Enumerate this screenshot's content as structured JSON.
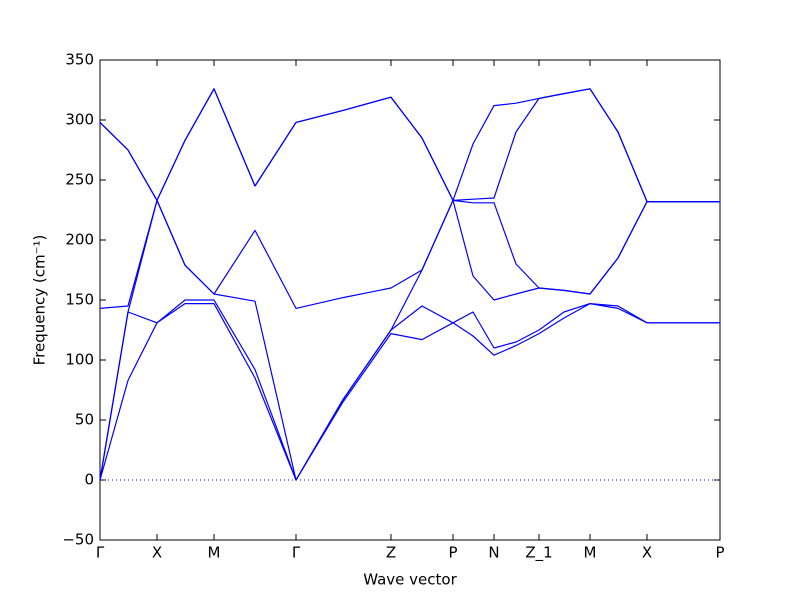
{
  "chart_data": {
    "type": "line",
    "xlabel": "Wave vector",
    "ylabel": "Frequency (cm⁻¹)",
    "x": [
      0,
      28,
      57,
      85,
      114,
      155,
      196,
      243,
      291,
      322,
      353,
      373,
      394,
      416,
      439,
      464,
      490,
      518,
      547,
      583,
      620
    ],
    "xlim": [
      0,
      620
    ],
    "xticks": [
      {
        "value": 0,
        "label": "Γ"
      },
      {
        "value": 57,
        "label": "X"
      },
      {
        "value": 114,
        "label": "M"
      },
      {
        "value": 196,
        "label": "Γ"
      },
      {
        "value": 291,
        "label": "Z"
      },
      {
        "value": 353,
        "label": "P"
      },
      {
        "value": 394,
        "label": "N"
      },
      {
        "value": 439,
        "label": "Z_1"
      },
      {
        "value": 490,
        "label": "M"
      },
      {
        "value": 547,
        "label": "X"
      },
      {
        "value": 620,
        "label": "P"
      }
    ],
    "ylim": [
      -50,
      350
    ],
    "yticks": [
      {
        "value": -50,
        "label": "−50"
      },
      0,
      50,
      100,
      150,
      200,
      250,
      300,
      350
    ],
    "grid": false,
    "series": [
      {
        "color": "#0000ff",
        "values": [
          0,
          83,
          131,
          147,
          147,
          85,
          0,
          65,
          122,
          117,
          131,
          120,
          104,
          112,
          122,
          135,
          147,
          143,
          131,
          131,
          131
        ]
      },
      {
        "color": "#0000ff",
        "values": [
          0,
          140,
          131,
          150,
          150,
          92,
          0,
          67,
          125,
          145,
          131,
          140,
          110,
          115,
          125,
          140,
          147,
          145,
          131,
          131,
          131
        ]
      },
      {
        "color": "#0000ff",
        "values": [
          0,
          140,
          233,
          179,
          155,
          149,
          0,
          67,
          125,
          175,
          233,
          170,
          150,
          155,
          160,
          158,
          155,
          185,
          232,
          232,
          232
        ]
      },
      {
        "color": "#0000ff",
        "values": [
          143,
          145,
          233,
          179,
          155,
          208,
          143,
          152,
          160,
          175,
          233,
          231,
          231,
          180,
          160,
          158,
          155,
          185,
          232,
          232,
          232
        ]
      },
      {
        "color": "#0000ff",
        "values": [
          298,
          275,
          233,
          283,
          326,
          245,
          298,
          308,
          319,
          285,
          233,
          234,
          235,
          290,
          318,
          322,
          326,
          290,
          232,
          232,
          232
        ]
      },
      {
        "color": "#0000ff",
        "values": [
          298,
          275,
          233,
          283,
          326,
          245,
          298,
          308,
          319,
          285,
          233,
          280,
          312,
          314,
          318,
          322,
          326,
          290,
          232,
          232,
          232
        ]
      }
    ]
  }
}
